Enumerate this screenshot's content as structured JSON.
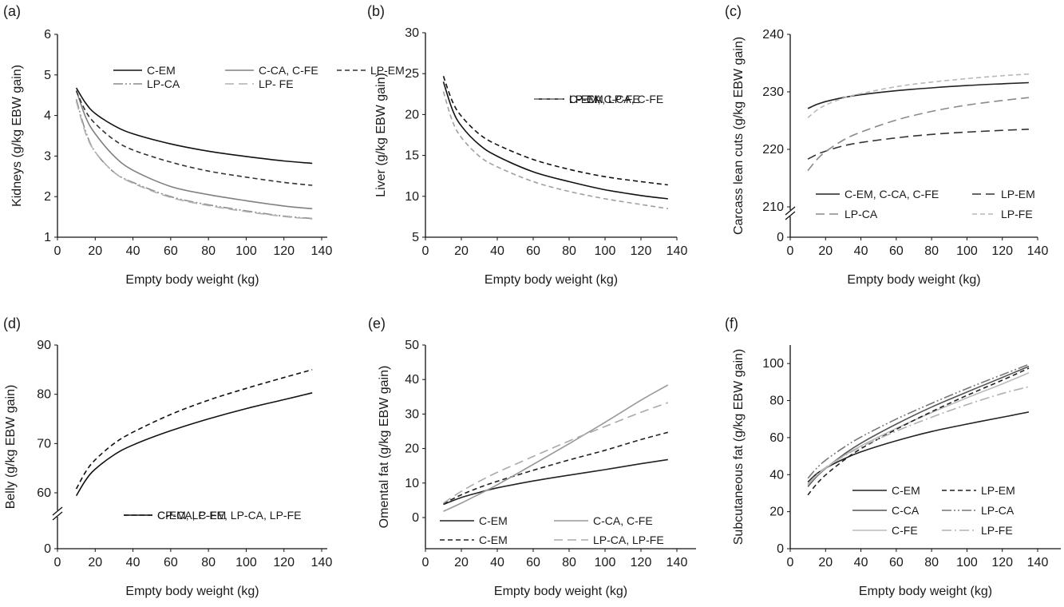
{
  "chart_data": [
    {
      "id": "a",
      "type": "line",
      "panel_label": "(a)",
      "xlabel": "Empty body weight (kg)",
      "ylabel": "Kidneys (g/kg EBW gain)",
      "xlim": [
        0,
        140
      ],
      "ylim": [
        1,
        6
      ],
      "xticks": [
        "0",
        "20",
        "40",
        "60",
        "80",
        "100",
        "120",
        "140"
      ],
      "yticks": [
        "1",
        "2",
        "3",
        "4",
        "5",
        "6"
      ],
      "axis_break": false,
      "legend_position": "top-center",
      "legend_columns": 2,
      "x": [
        10,
        15,
        20,
        30,
        40,
        60,
        80,
        100,
        120,
        135
      ],
      "series": [
        {
          "name": "C-EM",
          "style": "solid",
          "color": "#111111",
          "values": [
            4.68,
            4.3,
            4.05,
            3.75,
            3.55,
            3.3,
            3.12,
            2.99,
            2.88,
            2.82
          ]
        },
        {
          "name": "C-CA, C-FE",
          "style": "solid",
          "color": "#808080",
          "values": [
            4.62,
            3.95,
            3.55,
            3.0,
            2.65,
            2.25,
            2.05,
            1.9,
            1.77,
            1.7
          ]
        },
        {
          "name": "LP-EM",
          "style": "dash",
          "color": "#333333",
          "values": [
            4.6,
            4.1,
            3.8,
            3.4,
            3.15,
            2.85,
            2.63,
            2.48,
            2.35,
            2.28
          ]
        },
        {
          "name": "LP-CA",
          "style": "dashdotdot",
          "color": "#8a8a8a",
          "values": [
            4.4,
            3.6,
            3.1,
            2.6,
            2.35,
            2.0,
            1.8,
            1.65,
            1.52,
            1.46
          ]
        },
        {
          "name": "LP- FE",
          "style": "longdash",
          "color": "#b0b0b0",
          "values": [
            4.35,
            3.55,
            3.1,
            2.6,
            2.33,
            1.98,
            1.78,
            1.63,
            1.51,
            1.45
          ]
        }
      ]
    },
    {
      "id": "b",
      "type": "line",
      "panel_label": "(b)",
      "xlabel": "Empty body weight (kg)",
      "ylabel": "Liver (g/kg EBW gain)",
      "xlim": [
        0,
        140
      ],
      "ylim": [
        5,
        30
      ],
      "xticks": [
        "0",
        "20",
        "40",
        "60",
        "80",
        "100",
        "120",
        "140"
      ],
      "yticks": [
        "5",
        "10",
        "15",
        "20",
        "25",
        "30"
      ],
      "axis_break": false,
      "legend_position": "top-right",
      "legend_columns": 1,
      "x": [
        10,
        15,
        20,
        30,
        40,
        60,
        80,
        100,
        120,
        135
      ],
      "series": [
        {
          "name": "C-EM, C-CA, C-FE",
          "style": "solid",
          "color": "#111111",
          "values": [
            24.0,
            20.6,
            18.6,
            16.3,
            14.9,
            13.0,
            11.8,
            10.8,
            10.1,
            9.7
          ]
        },
        {
          "name": "LP-EM",
          "style": "dash",
          "color": "#111111",
          "values": [
            24.7,
            21.6,
            19.8,
            17.6,
            16.3,
            14.5,
            13.3,
            12.4,
            11.8,
            11.4
          ]
        },
        {
          "name": "LP-CA, LP-FE",
          "style": "dash",
          "color": "#a0a0a0",
          "values": [
            22.8,
            19.2,
            17.2,
            14.9,
            13.6,
            11.8,
            10.6,
            9.7,
            9.0,
            8.5
          ]
        }
      ]
    },
    {
      "id": "c",
      "type": "line",
      "panel_label": "(c)",
      "xlabel": "Empty body weight (kg)",
      "ylabel": "Carcass lean cuts (g/kg EBW gain)",
      "xlim": [
        0,
        140
      ],
      "ylim": [
        210,
        240
      ],
      "xticks": [
        "0",
        "20",
        "40",
        "60",
        "80",
        "100",
        "120",
        "140"
      ],
      "yticks": [
        "0",
        "210",
        "220",
        "230",
        "240"
      ],
      "axis_break": true,
      "legend_position": "bottom",
      "legend_columns": 2,
      "x": [
        10,
        15,
        20,
        30,
        40,
        60,
        80,
        100,
        120,
        135
      ],
      "series": [
        {
          "name": "C-EM, C-CA, C-FE",
          "style": "solid",
          "color": "#222222",
          "values": [
            227.1,
            227.8,
            228.3,
            229.0,
            229.5,
            230.2,
            230.7,
            231.1,
            231.4,
            231.6
          ]
        },
        {
          "name": "LP-EM",
          "style": "longdash",
          "color": "#333333",
          "values": [
            218.3,
            219.1,
            219.7,
            220.6,
            221.2,
            222.0,
            222.6,
            223.0,
            223.3,
            223.5
          ]
        },
        {
          "name": "LP-CA",
          "style": "longdash",
          "color": "#8a8a8a",
          "values": [
            216.3,
            218.2,
            219.6,
            221.6,
            223.0,
            225.1,
            226.6,
            227.7,
            228.5,
            229.0
          ]
        },
        {
          "name": "LP-FE",
          "style": "dash",
          "color": "#b8b8b8",
          "values": [
            225.5,
            226.8,
            227.7,
            228.9,
            229.7,
            230.9,
            231.7,
            232.3,
            232.8,
            233.1
          ]
        }
      ]
    },
    {
      "id": "d",
      "type": "line",
      "panel_label": "(d)",
      "xlabel": "Empty body weight (kg)",
      "ylabel": "Belly (g/kg EBW gain)",
      "xlim": [
        0,
        140
      ],
      "ylim": [
        55,
        90
      ],
      "xticks": [
        "0",
        "20",
        "40",
        "60",
        "80",
        "100",
        "120",
        "140"
      ],
      "yticks": [
        "0",
        "60",
        "70",
        "80",
        "90"
      ],
      "axis_break": true,
      "legend_position": "bottom-right",
      "legend_columns": 1,
      "x": [
        10,
        15,
        20,
        30,
        40,
        60,
        80,
        100,
        120,
        135
      ],
      "series": [
        {
          "name": "C-EM, LP-EM",
          "style": "solid",
          "color": "#111111",
          "values": [
            59.4,
            62.6,
            64.8,
            67.7,
            69.7,
            72.6,
            75.0,
            77.1,
            78.9,
            80.3
          ]
        },
        {
          "name": "CP-CA, C-FE, LP-CA, LP-FE",
          "style": "dash",
          "color": "#111111",
          "values": [
            60.8,
            64.3,
            66.7,
            70.0,
            72.3,
            75.9,
            78.8,
            81.2,
            83.4,
            85.0
          ]
        }
      ]
    },
    {
      "id": "e",
      "type": "line",
      "panel_label": "(e)",
      "xlabel": "Empty body weight (kg)",
      "ylabel": "Omental fat (g/kg EBW gain)",
      "xlim": [
        0,
        140
      ],
      "ylim": [
        -9,
        50
      ],
      "xticks": [
        "0",
        "20",
        "40",
        "60",
        "80",
        "100",
        "120",
        "140"
      ],
      "yticks": [
        "0",
        "10",
        "20",
        "30",
        "40",
        "50"
      ],
      "axis_break": false,
      "legend_position": "bottom",
      "legend_columns": 2,
      "x": [
        10,
        20,
        30,
        40,
        60,
        80,
        100,
        120,
        135
      ],
      "series": [
        {
          "name": "C-EM",
          "style": "solid",
          "color": "#222222",
          "values": [
            3.8,
            5.8,
            7.3,
            8.6,
            10.6,
            12.3,
            13.9,
            15.6,
            16.8
          ]
        },
        {
          "name": "C-EM",
          "style": "dash",
          "color": "#222222",
          "values": [
            4.0,
            6.6,
            8.7,
            10.5,
            13.7,
            16.7,
            19.5,
            22.6,
            24.7
          ]
        },
        {
          "name": "C-CA, C-FE",
          "style": "solid",
          "color": "#999999",
          "values": [
            1.8,
            4.2,
            6.8,
            9.5,
            15.4,
            21.4,
            27.6,
            34.0,
            38.4
          ]
        },
        {
          "name": "LP-CA, LP-FE",
          "style": "longdash",
          "color": "#aaaaaa",
          "values": [
            4.2,
            7.6,
            10.5,
            13.1,
            17.7,
            22.2,
            26.4,
            30.5,
            33.3
          ]
        }
      ]
    },
    {
      "id": "f",
      "type": "line",
      "panel_label": "(f)",
      "xlabel": "Empty body weight (kg)",
      "ylabel": "Subcutaneous fat (g/kg EBW gain)",
      "xlim": [
        0,
        140
      ],
      "ylim": [
        0,
        110
      ],
      "xticks": [
        "0",
        "20",
        "40",
        "60",
        "80",
        "100",
        "120",
        "140"
      ],
      "yticks": [
        "0",
        "20",
        "40",
        "60",
        "80",
        "100"
      ],
      "axis_break": false,
      "legend_position": "bottom-right",
      "legend_columns": 2,
      "x": [
        10,
        15,
        20,
        30,
        40,
        60,
        80,
        100,
        120,
        135
      ],
      "series": [
        {
          "name": "C-EM",
          "style": "solid",
          "color": "#222222",
          "values": [
            36.0,
            40.5,
            43.5,
            48.3,
            52.3,
            58.3,
            63.3,
            67.3,
            71.0,
            73.8
          ]
        },
        {
          "name": "C-CA",
          "style": "solid",
          "color": "#555555",
          "values": [
            33.5,
            39.0,
            43.3,
            50.7,
            57.0,
            67.3,
            76.5,
            84.6,
            92.5,
            98.5
          ]
        },
        {
          "name": "C-FE",
          "style": "solid",
          "color": "#bbbbbb",
          "values": [
            34.5,
            39.5,
            43.5,
            50.0,
            55.5,
            65.0,
            73.5,
            81.5,
            89.0,
            95.0
          ]
        },
        {
          "name": "LP-EM",
          "style": "dash",
          "color": "#222222",
          "values": [
            29.0,
            35.0,
            39.8,
            47.5,
            54.0,
            64.5,
            74.0,
            82.8,
            91.0,
            97.5
          ]
        },
        {
          "name": "LP-CA",
          "style": "dashdotdot",
          "color": "#777777",
          "values": [
            38.0,
            43.5,
            47.8,
            54.5,
            60.3,
            70.0,
            78.5,
            86.5,
            94.0,
            99.5
          ]
        },
        {
          "name": "LP-FE",
          "style": "dashdot",
          "color": "#b0b0b0",
          "values": [
            35.0,
            40.0,
            43.8,
            49.8,
            55.0,
            63.5,
            71.0,
            77.8,
            83.8,
            87.5
          ]
        }
      ]
    }
  ]
}
